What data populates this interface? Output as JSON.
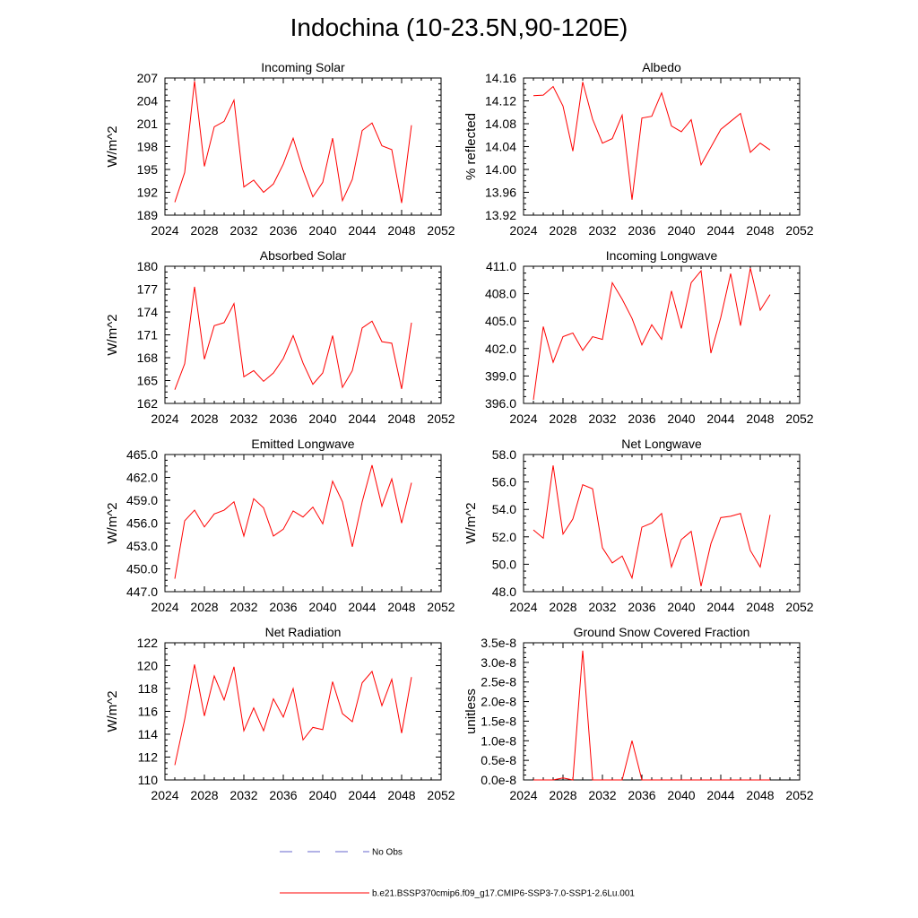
{
  "figure": {
    "title": "Indochina (10-23.5N,90-120E)",
    "legend": [
      {
        "label": "No Obs",
        "color": "#6666cc",
        "style": "dashed"
      },
      {
        "label": "b.e21.BSSP370cmip6.f09_g17.CMIP6-SSP3-7.0-SSP1-2.6Lu.001",
        "color": "#ff0000",
        "style": "solid"
      }
    ]
  },
  "chart_data": [
    {
      "type": "line",
      "title": "Incoming Solar",
      "ylabel": "W/m^2",
      "xlim": [
        2024,
        2052
      ],
      "ylim": [
        189,
        207
      ],
      "xticks": [
        2024,
        2028,
        2032,
        2036,
        2040,
        2044,
        2048,
        2052
      ],
      "yticks": [
        189,
        192,
        195,
        198,
        201,
        204,
        207
      ],
      "ytick_labels": [
        "189",
        "192",
        "195",
        "198",
        "201",
        "204",
        "207"
      ],
      "color": "#ff0000",
      "x": [
        2025,
        2026,
        2027,
        2028,
        2029,
        2030,
        2031,
        2032,
        2033,
        2034,
        2035,
        2036,
        2037,
        2038,
        2039,
        2040,
        2041,
        2042,
        2043,
        2044,
        2045,
        2046,
        2047,
        2048,
        2049
      ],
      "series": [
        {
          "values": [
            190.7,
            194.6,
            206.6,
            195.4,
            200.6,
            201.3,
            204.1,
            192.7,
            193.6,
            192.0,
            193.1,
            195.7,
            199.1,
            194.9,
            191.4,
            193.3,
            199.1,
            190.9,
            193.7,
            200.1,
            201.1,
            198.1,
            197.6,
            190.6,
            200.8
          ]
        }
      ]
    },
    {
      "type": "line",
      "title": "Albedo",
      "ylabel": "% reflected",
      "xlim": [
        2024,
        2052
      ],
      "ylim": [
        13.92,
        14.16
      ],
      "xticks": [
        2024,
        2028,
        2032,
        2036,
        2040,
        2044,
        2048,
        2052
      ],
      "yticks": [
        13.92,
        13.96,
        14.0,
        14.04,
        14.08,
        14.12,
        14.16
      ],
      "ytick_labels": [
        "13.92",
        "13.96",
        "14.00",
        "14.04",
        "14.08",
        "14.12",
        "14.16"
      ],
      "color": "#ff0000",
      "x": [
        2025,
        2026,
        2027,
        2028,
        2029,
        2030,
        2031,
        2032,
        2033,
        2034,
        2035,
        2036,
        2037,
        2038,
        2039,
        2040,
        2041,
        2042,
        2043,
        2044,
        2045,
        2046,
        2047,
        2048,
        2049
      ],
      "series": [
        {
          "values": [
            14.129,
            14.13,
            14.145,
            14.111,
            14.032,
            14.153,
            14.088,
            14.046,
            14.054,
            14.095,
            13.947,
            14.09,
            14.093,
            14.134,
            14.076,
            14.066,
            14.087,
            14.008,
            14.039,
            14.07,
            14.084,
            14.098,
            14.03,
            14.046,
            14.034
          ]
        }
      ]
    },
    {
      "type": "line",
      "title": "Absorbed Solar",
      "ylabel": "W/m^2",
      "xlim": [
        2024,
        2052
      ],
      "ylim": [
        162,
        180
      ],
      "xticks": [
        2024,
        2028,
        2032,
        2036,
        2040,
        2044,
        2048,
        2052
      ],
      "yticks": [
        162,
        165,
        168,
        171,
        174,
        177,
        180
      ],
      "ytick_labels": [
        "162",
        "165",
        "168",
        "171",
        "174",
        "177",
        "180"
      ],
      "color": "#ff0000",
      "x": [
        2025,
        2026,
        2027,
        2028,
        2029,
        2030,
        2031,
        2032,
        2033,
        2034,
        2035,
        2036,
        2037,
        2038,
        2039,
        2040,
        2041,
        2042,
        2043,
        2044,
        2045,
        2046,
        2047,
        2048,
        2049
      ],
      "series": [
        {
          "values": [
            163.8,
            167.2,
            177.3,
            167.8,
            172.2,
            172.6,
            175.1,
            165.5,
            166.3,
            164.9,
            166.0,
            167.9,
            170.9,
            167.3,
            164.5,
            166.0,
            170.9,
            164.1,
            166.3,
            171.9,
            172.8,
            170.1,
            169.9,
            163.9,
            172.6
          ]
        }
      ]
    },
    {
      "type": "line",
      "title": "Incoming Longwave",
      "ylabel": "",
      "xlim": [
        2024,
        2052
      ],
      "ylim": [
        396,
        411
      ],
      "xticks": [
        2024,
        2028,
        2032,
        2036,
        2040,
        2044,
        2048,
        2052
      ],
      "yticks": [
        396,
        399,
        402,
        405,
        408,
        411
      ],
      "ytick_labels": [
        "396.0",
        "399.0",
        "402.0",
        "405.0",
        "408.0",
        "411.0"
      ],
      "color": "#ff0000",
      "x": [
        2025,
        2026,
        2027,
        2028,
        2029,
        2030,
        2031,
        2032,
        2033,
        2034,
        2035,
        2036,
        2037,
        2038,
        2039,
        2040,
        2041,
        2042,
        2043,
        2044,
        2045,
        2046,
        2047,
        2048,
        2049
      ],
      "series": [
        {
          "values": [
            396.4,
            404.4,
            400.5,
            403.3,
            403.7,
            401.8,
            403.3,
            403.0,
            409.2,
            407.4,
            405.3,
            402.4,
            404.6,
            403.0,
            408.3,
            404.2,
            409.2,
            410.5,
            401.5,
            405.4,
            410.2,
            404.5,
            410.8,
            406.2,
            407.9
          ]
        }
      ]
    },
    {
      "type": "line",
      "title": "Emitted Longwave",
      "ylabel": "W/m^2",
      "xlim": [
        2024,
        2052
      ],
      "ylim": [
        447,
        465
      ],
      "xticks": [
        2024,
        2028,
        2032,
        2036,
        2040,
        2044,
        2048,
        2052
      ],
      "yticks": [
        447,
        450,
        453,
        456,
        459,
        462,
        465
      ],
      "ytick_labels": [
        "447.0",
        "450.0",
        "453.0",
        "456.0",
        "459.0",
        "462.0",
        "465.0"
      ],
      "color": "#ff0000",
      "x": [
        2025,
        2026,
        2027,
        2028,
        2029,
        2030,
        2031,
        2032,
        2033,
        2034,
        2035,
        2036,
        2037,
        2038,
        2039,
        2040,
        2041,
        2042,
        2043,
        2044,
        2045,
        2046,
        2047,
        2048,
        2049
      ],
      "series": [
        {
          "values": [
            448.7,
            456.3,
            457.7,
            455.5,
            457.2,
            457.7,
            458.8,
            454.3,
            459.2,
            458.0,
            454.3,
            455.2,
            457.6,
            456.8,
            458.1,
            455.9,
            461.5,
            458.8,
            452.9,
            458.8,
            463.6,
            458.2,
            461.8,
            456.0,
            461.3
          ]
        }
      ]
    },
    {
      "type": "line",
      "title": "Net Longwave",
      "ylabel": "W/m^2",
      "xlim": [
        2024,
        2052
      ],
      "ylim": [
        48,
        58
      ],
      "xticks": [
        2024,
        2028,
        2032,
        2036,
        2040,
        2044,
        2048,
        2052
      ],
      "yticks": [
        48,
        50,
        52,
        54,
        56,
        58
      ],
      "ytick_labels": [
        "48.0",
        "50.0",
        "52.0",
        "54.0",
        "56.0",
        "58.0"
      ],
      "color": "#ff0000",
      "x": [
        2025,
        2026,
        2027,
        2028,
        2029,
        2030,
        2031,
        2032,
        2033,
        2034,
        2035,
        2036,
        2037,
        2038,
        2039,
        2040,
        2041,
        2042,
        2043,
        2044,
        2045,
        2046,
        2047,
        2048,
        2049
      ],
      "series": [
        {
          "values": [
            52.5,
            51.9,
            57.2,
            52.2,
            53.3,
            55.8,
            55.5,
            51.2,
            50.1,
            50.6,
            49.0,
            52.7,
            53.0,
            53.7,
            49.8,
            51.8,
            52.4,
            48.4,
            51.5,
            53.4,
            53.5,
            53.7,
            51.0,
            49.8,
            53.6
          ]
        }
      ]
    },
    {
      "type": "line",
      "title": "Net Radiation",
      "ylabel": "W/m^2",
      "xlim": [
        2024,
        2052
      ],
      "ylim": [
        110,
        122
      ],
      "xticks": [
        2024,
        2028,
        2032,
        2036,
        2040,
        2044,
        2048,
        2052
      ],
      "yticks": [
        110,
        112,
        114,
        116,
        118,
        120,
        122
      ],
      "ytick_labels": [
        "110",
        "112",
        "114",
        "116",
        "118",
        "120",
        "122"
      ],
      "color": "#ff0000",
      "x": [
        2025,
        2026,
        2027,
        2028,
        2029,
        2030,
        2031,
        2032,
        2033,
        2034,
        2035,
        2036,
        2037,
        2038,
        2039,
        2040,
        2041,
        2042,
        2043,
        2044,
        2045,
        2046,
        2047,
        2048,
        2049
      ],
      "series": [
        {
          "values": [
            111.3,
            115.3,
            120.1,
            115.6,
            119.1,
            117.0,
            119.9,
            114.3,
            116.3,
            114.3,
            117.1,
            115.5,
            118.0,
            113.5,
            114.6,
            114.4,
            118.6,
            115.8,
            115.1,
            118.5,
            119.5,
            116.5,
            118.8,
            114.1,
            119.0
          ]
        }
      ]
    },
    {
      "type": "line",
      "title": "Ground Snow Covered Fraction",
      "ylabel": "unitless",
      "xlim": [
        2024,
        2052
      ],
      "ylim": [
        0,
        3.5e-08
      ],
      "xticks": [
        2024,
        2028,
        2032,
        2036,
        2040,
        2044,
        2048,
        2052
      ],
      "yticks": [
        0,
        5e-09,
        1e-08,
        1.5e-08,
        2e-08,
        2.5e-08,
        3e-08,
        3.5e-08
      ],
      "ytick_labels": [
        "0.0e-8",
        "0.5e-8",
        "1.0e-8",
        "1.5e-8",
        "2.0e-8",
        "2.5e-8",
        "3.0e-8",
        "3.5e-8"
      ],
      "color": "#ff0000",
      "x": [
        2025,
        2026,
        2027,
        2028,
        2029,
        2030,
        2031,
        2032,
        2033,
        2034,
        2035,
        2036,
        2037,
        2038,
        2039,
        2040,
        2041,
        2042,
        2043,
        2044,
        2045,
        2046,
        2047,
        2048,
        2049
      ],
      "series": [
        {
          "values": [
            0,
            0,
            0,
            5e-10,
            0,
            3.3e-08,
            0,
            0,
            0,
            0,
            1e-08,
            0,
            0,
            0,
            0,
            0,
            0,
            0,
            0,
            0,
            0,
            0,
            0,
            0,
            0
          ]
        }
      ]
    }
  ]
}
